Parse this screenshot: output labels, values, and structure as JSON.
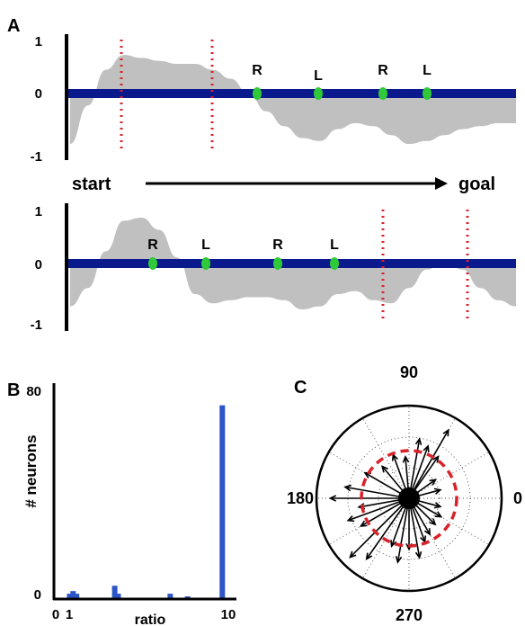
{
  "panel_a": {
    "label": "A",
    "y_ticks": [
      "1",
      "0",
      "-1"
    ],
    "arrow_start": "start",
    "arrow_goal": "goal",
    "top_markers": [
      "R",
      "L",
      "R",
      "L"
    ],
    "bottom_markers": [
      "R",
      "L",
      "R",
      "L"
    ]
  },
  "panel_b": {
    "label": "B",
    "ylabel": "# neurons",
    "xlabel": "ratio",
    "y_ticks": [
      "80",
      "0"
    ],
    "x_ticks": [
      "0",
      "1",
      "10"
    ]
  },
  "panel_c": {
    "label": "C",
    "angle_labels": [
      "90",
      "180",
      "0",
      "270"
    ]
  },
  "colors": {
    "track": "#0a1a8c",
    "fill": "#c0c0c0",
    "dots": "#d9222a",
    "markers": "#2fc93a",
    "bars": "#2b55c8",
    "circle": "#d9222a"
  },
  "chart_data": [
    {
      "type": "area",
      "title": "",
      "xlabel": "",
      "ylabel": "",
      "ylim": [
        -1,
        1
      ],
      "x": [
        0.0,
        0.04,
        0.08,
        0.12,
        0.16,
        0.2,
        0.24,
        0.28,
        0.32,
        0.36,
        0.4,
        0.44,
        0.48,
        0.52,
        0.56,
        0.6,
        0.64,
        0.68,
        0.72,
        0.76,
        0.8,
        0.84,
        0.88,
        0.92,
        0.96,
        1.0
      ],
      "values": [
        -0.85,
        -0.2,
        0.4,
        0.65,
        0.6,
        0.55,
        0.5,
        0.5,
        0.4,
        0.25,
        0.0,
        -0.3,
        -0.55,
        -0.75,
        -0.8,
        -0.6,
        -0.5,
        -0.55,
        -0.7,
        -0.85,
        -0.8,
        -0.7,
        -0.6,
        -0.55,
        -0.5,
        -0.5
      ]
    },
    {
      "type": "area",
      "title": "",
      "xlabel": "",
      "ylabel": "",
      "ylim": [
        -1,
        1
      ],
      "x": [
        0.0,
        0.04,
        0.08,
        0.12,
        0.16,
        0.2,
        0.24,
        0.28,
        0.32,
        0.36,
        0.4,
        0.44,
        0.48,
        0.52,
        0.56,
        0.6,
        0.64,
        0.68,
        0.72,
        0.76,
        0.8,
        0.84,
        0.88,
        0.92,
        0.96,
        1.0
      ],
      "values": [
        -0.7,
        -0.4,
        0.2,
        0.7,
        0.75,
        0.55,
        0.1,
        -0.5,
        -0.65,
        -0.6,
        -0.55,
        -0.55,
        -0.6,
        -0.75,
        -0.7,
        -0.5,
        -0.45,
        -0.6,
        -0.65,
        -0.4,
        -0.1,
        0.05,
        -0.1,
        -0.4,
        -0.6,
        -0.7
      ]
    },
    {
      "type": "bar",
      "title": "",
      "xlabel": "ratio",
      "ylabel": "# neurons",
      "ylim": [
        0,
        80
      ],
      "x": [
        0.8,
        1.0,
        1.2,
        3.4,
        3.6,
        6.6,
        7.6,
        9.6
      ],
      "values": [
        2,
        3,
        2,
        5,
        2,
        2,
        1,
        73
      ]
    },
    {
      "type": "scatter",
      "title": "",
      "xlabel": "",
      "ylabel": "",
      "angles_deg": [
        15,
        35,
        55,
        60,
        70,
        80,
        95,
        110,
        130,
        150,
        170,
        180,
        190,
        200,
        210,
        225,
        235,
        250,
        260,
        270,
        280,
        290,
        300,
        315,
        330,
        345
      ],
      "lengths": [
        0.35,
        0.35,
        0.55,
        0.85,
        0.6,
        0.65,
        0.45,
        0.5,
        0.45,
        0.55,
        0.7,
        0.85,
        0.55,
        0.7,
        0.6,
        0.9,
        0.8,
        0.55,
        0.7,
        0.55,
        0.65,
        0.5,
        0.45,
        0.4,
        0.4,
        0.35
      ]
    }
  ]
}
